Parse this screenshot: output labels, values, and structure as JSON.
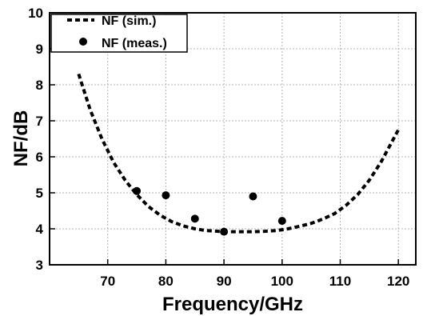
{
  "chart_data": {
    "type": "line",
    "xlabel": "Frequency/GHz",
    "ylabel": "NF/dB",
    "xlim": [
      60,
      123
    ],
    "ylim": [
      3,
      10
    ],
    "x_ticks": [
      70,
      80,
      90,
      100,
      110,
      120
    ],
    "y_ticks": [
      3,
      4,
      5,
      6,
      7,
      8,
      9,
      10
    ],
    "grid": true,
    "legend_position": "top-left",
    "series": [
      {
        "name": "NF (sim.)",
        "style": "dashed-line",
        "color": "#000000",
        "x": [
          65,
          67,
          69,
          71,
          73,
          75,
          77,
          79,
          81,
          83,
          85,
          87,
          89,
          91,
          93,
          95,
          97,
          99,
          101,
          103,
          105,
          107,
          109,
          111,
          113,
          115,
          117,
          119,
          120
        ],
        "y": [
          8.3,
          7.3,
          6.5,
          5.85,
          5.35,
          4.95,
          4.62,
          4.38,
          4.2,
          4.08,
          4.0,
          3.95,
          3.93,
          3.92,
          3.92,
          3.92,
          3.93,
          3.95,
          4.0,
          4.07,
          4.15,
          4.27,
          4.42,
          4.65,
          4.95,
          5.35,
          5.85,
          6.45,
          6.75
        ]
      },
      {
        "name": "NF (meas.)",
        "style": "markers",
        "color": "#000000",
        "x": [
          75,
          80,
          85,
          90,
          95,
          100
        ],
        "y": [
          5.05,
          4.93,
          4.28,
          3.92,
          4.9,
          4.22
        ]
      }
    ]
  }
}
